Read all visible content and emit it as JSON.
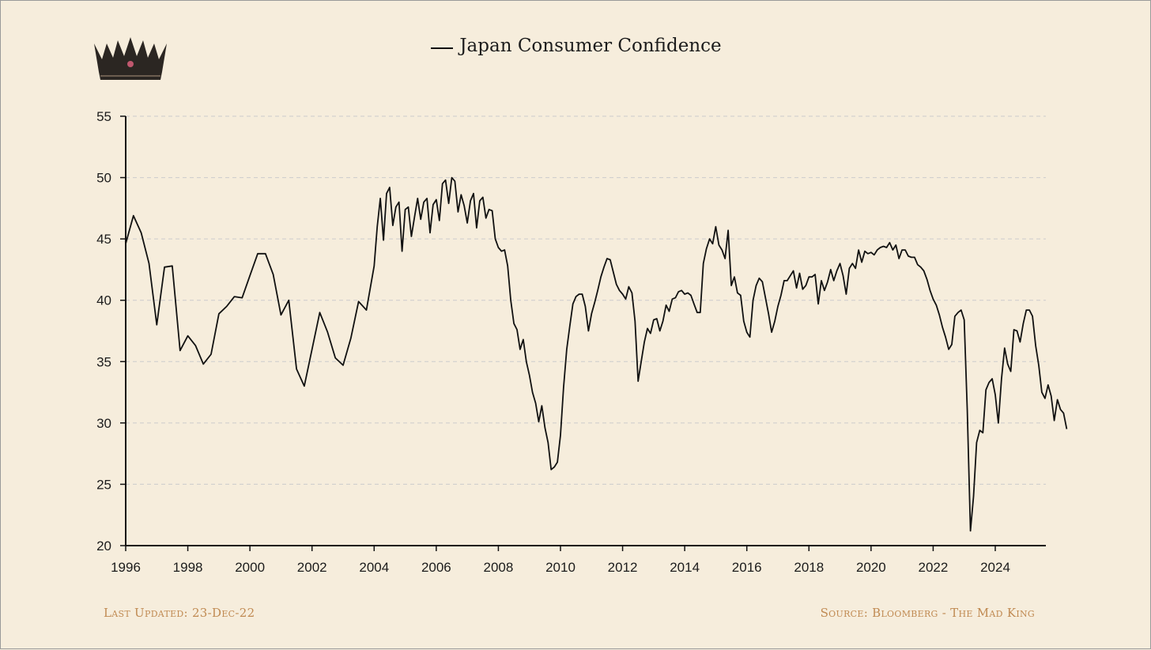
{
  "legend": {
    "series_name": "Japan Consumer Confidence"
  },
  "footer": {
    "last_updated": "Last Updated: 23-Dec-22",
    "source": "Source: Bloomberg - The Mad King"
  },
  "colors": {
    "background": "#f6eddc",
    "line": "#111111",
    "grid": "#cccccc",
    "footer_text": "#c08a52"
  },
  "icons": {
    "logo": "crown-icon"
  },
  "chart_data": {
    "type": "line",
    "title": "",
    "xlabel": "",
    "ylabel": "",
    "xlim": [
      1996,
      2025.5
    ],
    "ylim": [
      20,
      55
    ],
    "xticks": [
      1996,
      1998,
      2000,
      2002,
      2004,
      2006,
      2008,
      2010,
      2012,
      2014,
      2016,
      2018,
      2020,
      2022,
      2024
    ],
    "yticks": [
      20,
      25,
      30,
      35,
      40,
      45,
      50,
      55
    ],
    "grid": "horizontal-dashed",
    "legend_position": "top-center",
    "series": [
      {
        "name": "Japan Consumer Confidence",
        "points": [
          [
            1996.0,
            44.6
          ],
          [
            1996.25,
            46.9
          ],
          [
            1996.5,
            45.5
          ],
          [
            1996.75,
            43.0
          ],
          [
            1997.0,
            38.0
          ],
          [
            1997.25,
            42.7
          ],
          [
            1997.5,
            42.8
          ],
          [
            1997.75,
            35.9
          ],
          [
            1998.0,
            37.1
          ],
          [
            1998.25,
            36.3
          ],
          [
            1998.5,
            34.8
          ],
          [
            1998.75,
            35.6
          ],
          [
            1999.0,
            38.9
          ],
          [
            1999.25,
            39.5
          ],
          [
            1999.5,
            40.3
          ],
          [
            1999.75,
            40.2
          ],
          [
            2000.0,
            42.0
          ],
          [
            2000.25,
            43.8
          ],
          [
            2000.5,
            43.8
          ],
          [
            2000.75,
            42.1
          ],
          [
            2001.0,
            38.8
          ],
          [
            2001.25,
            40.0
          ],
          [
            2001.5,
            34.4
          ],
          [
            2001.75,
            33.0
          ],
          [
            2002.0,
            36.0
          ],
          [
            2002.25,
            39.0
          ],
          [
            2002.5,
            37.4
          ],
          [
            2002.75,
            35.3
          ],
          [
            2003.0,
            34.7
          ],
          [
            2003.25,
            36.9
          ],
          [
            2003.5,
            39.9
          ],
          [
            2003.75,
            39.2
          ],
          [
            2004.0,
            42.8
          ],
          [
            2004.1,
            46.0
          ],
          [
            2004.2,
            48.3
          ],
          [
            2004.3,
            44.9
          ],
          [
            2004.4,
            48.7
          ],
          [
            2004.5,
            49.2
          ],
          [
            2004.6,
            46.1
          ],
          [
            2004.7,
            47.6
          ],
          [
            2004.8,
            48.0
          ],
          [
            2004.9,
            44.0
          ],
          [
            2005.0,
            47.4
          ],
          [
            2005.1,
            47.6
          ],
          [
            2005.2,
            45.2
          ],
          [
            2005.3,
            46.8
          ],
          [
            2005.4,
            48.3
          ],
          [
            2005.5,
            46.6
          ],
          [
            2005.6,
            48.0
          ],
          [
            2005.7,
            48.3
          ],
          [
            2005.8,
            45.5
          ],
          [
            2005.9,
            47.8
          ],
          [
            2006.0,
            48.2
          ],
          [
            2006.1,
            46.5
          ],
          [
            2006.2,
            49.5
          ],
          [
            2006.3,
            49.8
          ],
          [
            2006.4,
            47.9
          ],
          [
            2006.5,
            50.0
          ],
          [
            2006.6,
            49.7
          ],
          [
            2006.7,
            47.2
          ],
          [
            2006.8,
            48.6
          ],
          [
            2006.9,
            47.7
          ],
          [
            2007.0,
            46.3
          ],
          [
            2007.1,
            48.1
          ],
          [
            2007.2,
            48.7
          ],
          [
            2007.3,
            45.9
          ],
          [
            2007.4,
            48.1
          ],
          [
            2007.5,
            48.4
          ],
          [
            2007.6,
            46.7
          ],
          [
            2007.7,
            47.4
          ],
          [
            2007.8,
            47.3
          ],
          [
            2007.9,
            45.0
          ],
          [
            2008.0,
            44.3
          ],
          [
            2008.1,
            44.0
          ],
          [
            2008.2,
            44.1
          ],
          [
            2008.3,
            42.8
          ],
          [
            2008.4,
            40.0
          ],
          [
            2008.5,
            38.1
          ],
          [
            2008.6,
            37.6
          ],
          [
            2008.7,
            36.0
          ],
          [
            2008.8,
            36.8
          ],
          [
            2008.9,
            35.0
          ],
          [
            2009.0,
            33.9
          ],
          [
            2009.1,
            32.5
          ],
          [
            2009.2,
            31.6
          ],
          [
            2009.3,
            30.1
          ],
          [
            2009.4,
            31.4
          ],
          [
            2009.5,
            29.6
          ],
          [
            2009.6,
            28.4
          ],
          [
            2009.7,
            26.2
          ],
          [
            2009.8,
            26.4
          ],
          [
            2009.9,
            26.8
          ],
          [
            2010.0,
            29.0
          ],
          [
            2010.1,
            32.9
          ],
          [
            2010.2,
            36.0
          ],
          [
            2010.3,
            37.9
          ],
          [
            2010.4,
            39.7
          ],
          [
            2010.5,
            40.3
          ],
          [
            2010.6,
            40.5
          ],
          [
            2010.7,
            40.5
          ],
          [
            2010.8,
            39.5
          ],
          [
            2010.9,
            37.5
          ],
          [
            2011.0,
            38.9
          ],
          [
            2011.1,
            39.8
          ],
          [
            2011.2,
            40.8
          ],
          [
            2011.3,
            41.9
          ],
          [
            2011.4,
            42.7
          ],
          [
            2011.5,
            43.4
          ],
          [
            2011.6,
            43.3
          ],
          [
            2011.7,
            42.3
          ],
          [
            2011.8,
            41.3
          ],
          [
            2011.9,
            40.8
          ],
          [
            2012.0,
            40.5
          ],
          [
            2012.1,
            40.1
          ],
          [
            2012.2,
            41.1
          ],
          [
            2012.3,
            40.6
          ],
          [
            2012.4,
            38.3
          ],
          [
            2012.5,
            33.4
          ],
          [
            2012.6,
            35.0
          ],
          [
            2012.7,
            36.6
          ],
          [
            2012.8,
            37.7
          ],
          [
            2012.9,
            37.3
          ],
          [
            2013.0,
            38.4
          ],
          [
            2013.1,
            38.5
          ],
          [
            2013.2,
            37.5
          ],
          [
            2013.3,
            38.3
          ],
          [
            2013.4,
            39.6
          ],
          [
            2013.5,
            39.1
          ],
          [
            2013.6,
            40.1
          ],
          [
            2013.7,
            40.2
          ],
          [
            2013.8,
            40.7
          ],
          [
            2013.9,
            40.8
          ],
          [
            2014.0,
            40.5
          ],
          [
            2014.1,
            40.6
          ],
          [
            2014.2,
            40.4
          ],
          [
            2014.3,
            39.7
          ],
          [
            2014.4,
            39.0
          ],
          [
            2014.5,
            39.0
          ],
          [
            2014.6,
            43.0
          ],
          [
            2014.7,
            44.2
          ],
          [
            2014.8,
            45.0
          ],
          [
            2014.9,
            44.6
          ],
          [
            2015.0,
            46.0
          ],
          [
            2015.1,
            44.5
          ],
          [
            2015.2,
            44.1
          ],
          [
            2015.3,
            43.4
          ],
          [
            2015.4,
            45.7
          ],
          [
            2015.5,
            41.2
          ],
          [
            2015.6,
            41.9
          ],
          [
            2015.7,
            40.6
          ],
          [
            2015.8,
            40.4
          ],
          [
            2015.9,
            38.3
          ],
          [
            2016.0,
            37.4
          ],
          [
            2016.1,
            37.0
          ],
          [
            2016.2,
            40.0
          ],
          [
            2016.3,
            41.2
          ],
          [
            2016.4,
            41.8
          ],
          [
            2016.5,
            41.5
          ],
          [
            2016.6,
            40.2
          ],
          [
            2016.7,
            38.9
          ],
          [
            2016.8,
            37.4
          ],
          [
            2016.9,
            38.3
          ],
          [
            2017.0,
            39.5
          ],
          [
            2017.1,
            40.4
          ],
          [
            2017.2,
            41.6
          ],
          [
            2017.3,
            41.6
          ],
          [
            2017.4,
            42.0
          ],
          [
            2017.5,
            42.4
          ],
          [
            2017.6,
            41.0
          ],
          [
            2017.7,
            42.2
          ],
          [
            2017.8,
            40.9
          ],
          [
            2017.9,
            41.2
          ],
          [
            2018.0,
            41.9
          ],
          [
            2018.1,
            41.9
          ],
          [
            2018.2,
            42.1
          ],
          [
            2018.3,
            39.7
          ],
          [
            2018.4,
            41.6
          ],
          [
            2018.5,
            40.8
          ],
          [
            2018.6,
            41.5
          ],
          [
            2018.7,
            42.5
          ],
          [
            2018.8,
            41.6
          ],
          [
            2018.9,
            42.4
          ],
          [
            2019.0,
            43.0
          ],
          [
            2019.1,
            42.0
          ],
          [
            2019.2,
            40.5
          ],
          [
            2019.3,
            42.6
          ],
          [
            2019.4,
            43.0
          ],
          [
            2019.5,
            42.6
          ],
          [
            2019.6,
            44.1
          ],
          [
            2019.7,
            43.1
          ],
          [
            2019.8,
            44.0
          ],
          [
            2019.9,
            43.8
          ],
          [
            2020.0,
            43.9
          ],
          [
            2020.1,
            43.7
          ],
          [
            2020.2,
            44.1
          ],
          [
            2020.3,
            44.3
          ],
          [
            2020.4,
            44.4
          ],
          [
            2020.5,
            44.3
          ],
          [
            2020.6,
            44.7
          ],
          [
            2020.7,
            44.1
          ],
          [
            2020.8,
            44.5
          ],
          [
            2020.9,
            43.4
          ],
          [
            2021.0,
            44.1
          ],
          [
            2021.1,
            44.1
          ],
          [
            2021.2,
            43.6
          ],
          [
            2021.3,
            43.5
          ],
          [
            2021.4,
            43.5
          ],
          [
            2021.5,
            42.9
          ],
          [
            2021.6,
            42.7
          ],
          [
            2021.7,
            42.4
          ],
          [
            2021.8,
            41.7
          ],
          [
            2021.9,
            40.8
          ],
          [
            2022.0,
            40.1
          ],
          [
            2022.1,
            39.6
          ],
          [
            2022.2,
            38.8
          ],
          [
            2022.3,
            37.8
          ],
          [
            2022.4,
            37.0
          ],
          [
            2022.5,
            36.0
          ],
          [
            2022.6,
            36.4
          ],
          [
            2022.7,
            38.7
          ],
          [
            2022.8,
            39.0
          ],
          [
            2022.9,
            39.2
          ],
          [
            2023.0,
            38.4
          ],
          [
            2023.1,
            31.0
          ],
          [
            2023.2,
            21.2
          ],
          [
            2023.3,
            24.0
          ],
          [
            2023.4,
            28.4
          ],
          [
            2023.5,
            29.4
          ],
          [
            2023.6,
            29.2
          ],
          [
            2023.7,
            32.7
          ],
          [
            2023.8,
            33.3
          ],
          [
            2023.9,
            33.6
          ],
          [
            2024.0,
            32.3
          ],
          [
            2024.1,
            30.0
          ],
          [
            2024.2,
            33.6
          ],
          [
            2024.3,
            36.1
          ],
          [
            2024.4,
            34.8
          ],
          [
            2024.5,
            34.2
          ],
          [
            2024.6,
            37.6
          ],
          [
            2024.7,
            37.5
          ],
          [
            2024.8,
            36.6
          ],
          [
            2024.9,
            38.1
          ],
          [
            2025.0,
            39.2
          ],
          [
            2025.1,
            39.2
          ],
          [
            2025.2,
            38.7
          ],
          [
            2025.3,
            36.3
          ],
          [
            2025.4,
            34.7
          ],
          [
            2025.5,
            32.5
          ],
          [
            2025.6,
            32.0
          ],
          [
            2025.7,
            33.1
          ],
          [
            2025.8,
            32.2
          ],
          [
            2025.9,
            30.2
          ],
          [
            2026.0,
            31.9
          ],
          [
            2026.1,
            31.1
          ],
          [
            2026.2,
            30.8
          ],
          [
            2026.3,
            29.5
          ]
        ]
      }
    ]
  }
}
